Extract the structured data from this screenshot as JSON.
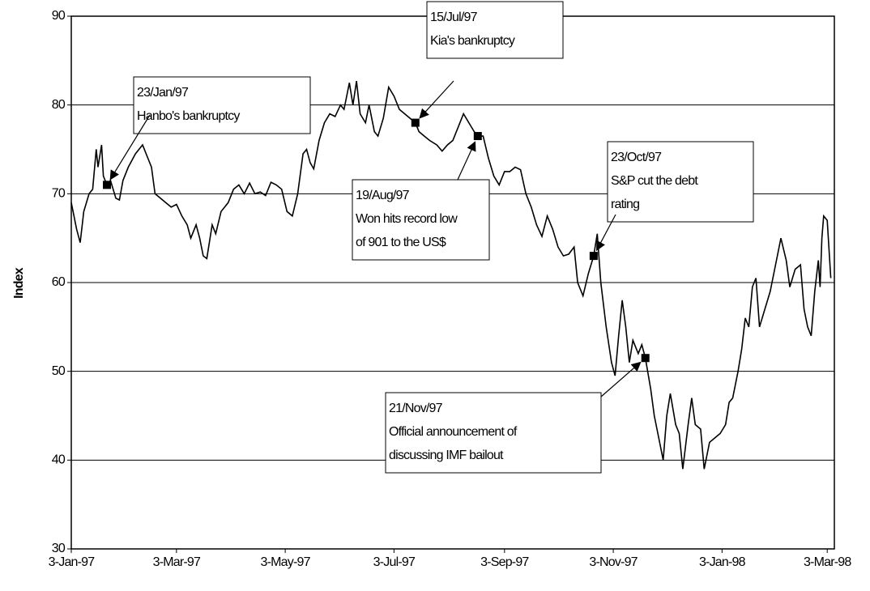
{
  "chart_data": {
    "type": "line",
    "y_label": "Index",
    "color": "#000000",
    "grid": true,
    "ylim": [
      30,
      90
    ],
    "yticks": [
      30,
      40,
      50,
      60,
      70,
      80,
      90
    ],
    "xlim": [
      "1997-01-03",
      "1998-03-07"
    ],
    "xticks": [
      {
        "value": "1997-01-03",
        "label": "3-Jan-97"
      },
      {
        "value": "1997-03-03",
        "label": "3-Mar-97"
      },
      {
        "value": "1997-05-03",
        "label": "3-May-97"
      },
      {
        "value": "1997-07-03",
        "label": "3-Jul-97"
      },
      {
        "value": "1997-09-03",
        "label": "3-Sep-97"
      },
      {
        "value": "1997-11-03",
        "label": "3-Nov-97"
      },
      {
        "value": "1998-01-03",
        "label": "3-Jan-98"
      },
      {
        "value": "1998-03-03",
        "label": "3-Mar-98"
      }
    ],
    "x": [
      "1997-01-03",
      "1997-01-06",
      "1997-01-08",
      "1997-01-10",
      "1997-01-13",
      "1997-01-15",
      "1997-01-17",
      "1997-01-18",
      "1997-01-20",
      "1997-01-21",
      "1997-01-23",
      "1997-01-25",
      "1997-01-28",
      "1997-01-30",
      "1997-02-01",
      "1997-02-04",
      "1997-02-08",
      "1997-02-12",
      "1997-02-15",
      "1997-02-17",
      "1997-02-19",
      "1997-02-22",
      "1997-02-25",
      "1997-02-28",
      "1997-03-03",
      "1997-03-06",
      "1997-03-09",
      "1997-03-11",
      "1997-03-14",
      "1997-03-16",
      "1997-03-18",
      "1997-03-20",
      "1997-03-23",
      "1997-03-25",
      "1997-03-28",
      "1997-04-01",
      "1997-04-04",
      "1997-04-07",
      "1997-04-10",
      "1997-04-13",
      "1997-04-16",
      "1997-04-19",
      "1997-04-22",
      "1997-04-25",
      "1997-04-28",
      "1997-05-01",
      "1997-05-04",
      "1997-05-07",
      "1997-05-10",
      "1997-05-13",
      "1997-05-15",
      "1997-05-17",
      "1997-05-19",
      "1997-05-22",
      "1997-05-25",
      "1997-05-28",
      "1997-05-31",
      "1997-06-03",
      "1997-06-05",
      "1997-06-08",
      "1997-06-10",
      "1997-06-12",
      "1997-06-14",
      "1997-06-17",
      "1997-06-19",
      "1997-06-22",
      "1997-06-24",
      "1997-06-27",
      "1997-06-30",
      "1997-07-03",
      "1997-07-06",
      "1997-07-09",
      "1997-07-12",
      "1997-07-15",
      "1997-07-17",
      "1997-07-20",
      "1997-07-23",
      "1997-07-27",
      "1997-07-30",
      "1997-08-02",
      "1997-08-05",
      "1997-08-08",
      "1997-08-11",
      "1997-08-14",
      "1997-08-17",
      "1997-08-19",
      "1997-08-22",
      "1997-08-25",
      "1997-08-28",
      "1997-08-31",
      "1997-09-03",
      "1997-09-06",
      "1997-09-09",
      "1997-09-12",
      "1997-09-15",
      "1997-09-18",
      "1997-09-21",
      "1997-09-24",
      "1997-09-27",
      "1997-09-30",
      "1997-10-03",
      "1997-10-06",
      "1997-10-09",
      "1997-10-12",
      "1997-10-14",
      "1997-10-17",
      "1997-10-20",
      "1997-10-23",
      "1997-10-25",
      "1997-10-27",
      "1997-10-30",
      "1997-11-02",
      "1997-11-04",
      "1997-11-06",
      "1997-11-08",
      "1997-11-10",
      "1997-11-12",
      "1997-11-14",
      "1997-11-17",
      "1997-11-19",
      "1997-11-21",
      "1997-11-24",
      "1997-11-26",
      "1997-11-28",
      "1997-12-01",
      "1997-12-03",
      "1997-12-05",
      "1997-12-08",
      "1997-12-10",
      "1997-12-12",
      "1997-12-15",
      "1997-12-17",
      "1997-12-19",
      "1997-12-22",
      "1997-12-24",
      "1997-12-27",
      "1997-12-30",
      "1998-01-02",
      "1998-01-05",
      "1998-01-07",
      "1998-01-09",
      "1998-01-12",
      "1998-01-14",
      "1998-01-16",
      "1998-01-18",
      "1998-01-20",
      "1998-01-22",
      "1998-01-24",
      "1998-01-27",
      "1998-01-30",
      "1998-02-02",
      "1998-02-05",
      "1998-02-08",
      "1998-02-10",
      "1998-02-13",
      "1998-02-16",
      "1998-02-18",
      "1998-02-20",
      "1998-02-22",
      "1998-02-24",
      "1998-02-26",
      "1998-02-27",
      "1998-02-28",
      "1998-03-01",
      "1998-03-03",
      "1998-03-05"
    ],
    "values": [
      69,
      66,
      64.5,
      68,
      70,
      70.5,
      75,
      73,
      75.5,
      72,
      71,
      71.5,
      69.5,
      69.3,
      71.5,
      73,
      74.5,
      75.5,
      74,
      73,
      70,
      69.5,
      69,
      68.5,
      68.8,
      67.5,
      66.5,
      65,
      66.5,
      65,
      63,
      62.7,
      66.5,
      65.5,
      68,
      69,
      70.5,
      71,
      70,
      71.2,
      70,
      70.2,
      69.8,
      71.3,
      71,
      70.5,
      68,
      67.5,
      70,
      74.5,
      75,
      73.5,
      72.8,
      76,
      78,
      79,
      78.7,
      80,
      79.5,
      82.5,
      80,
      82.7,
      79,
      78,
      80,
      77,
      76.5,
      78.5,
      82,
      81,
      79.5,
      79,
      78.5,
      78,
      77,
      76.5,
      76,
      75.5,
      74.8,
      75.5,
      76,
      77.5,
      79,
      78,
      77,
      76.5,
      76.5,
      74,
      72,
      71,
      72.5,
      72.5,
      73,
      72.7,
      70,
      68.5,
      66.5,
      65.2,
      67.5,
      66,
      64,
      63,
      63.2,
      64,
      60,
      58.5,
      61,
      63,
      65.5,
      60,
      55,
      51,
      49.5,
      54,
      58,
      55,
      51,
      53.5,
      52,
      53,
      51.5,
      48,
      45,
      43,
      40,
      45,
      47.5,
      44,
      43,
      39,
      44,
      47,
      44,
      43.5,
      39,
      42,
      42.5,
      43,
      44,
      46.5,
      47,
      50,
      52.5,
      56,
      55,
      59.5,
      60.5,
      55,
      57,
      59,
      62,
      65,
      62.5,
      59.5,
      61.5,
      62,
      57,
      55,
      54,
      59,
      62.5,
      59.5,
      65,
      67.5,
      67,
      60.5
    ],
    "annotations": [
      {
        "x": "1997-01-23",
        "value": 71,
        "text": [
          "23/Jan/97",
          "Hanbo's bankruptcy"
        ]
      },
      {
        "x": "1997-07-15",
        "value": 78,
        "text": [
          "15/Jul/97",
          "Kia's bankruptcy"
        ]
      },
      {
        "x": "1997-08-19",
        "value": 76.5,
        "text": [
          "19/Aug/97",
          "Won hits record low",
          "of 901 to the US$"
        ]
      },
      {
        "x": "1997-10-23",
        "value": 63,
        "text": [
          "23/Oct/97",
          "S&P cut  the debt",
          "rating"
        ]
      },
      {
        "x": "1997-11-21",
        "value": 51.5,
        "text": [
          "21/Nov/97",
          "Official announcement of",
          "discussing IMF bailout"
        ]
      }
    ]
  }
}
